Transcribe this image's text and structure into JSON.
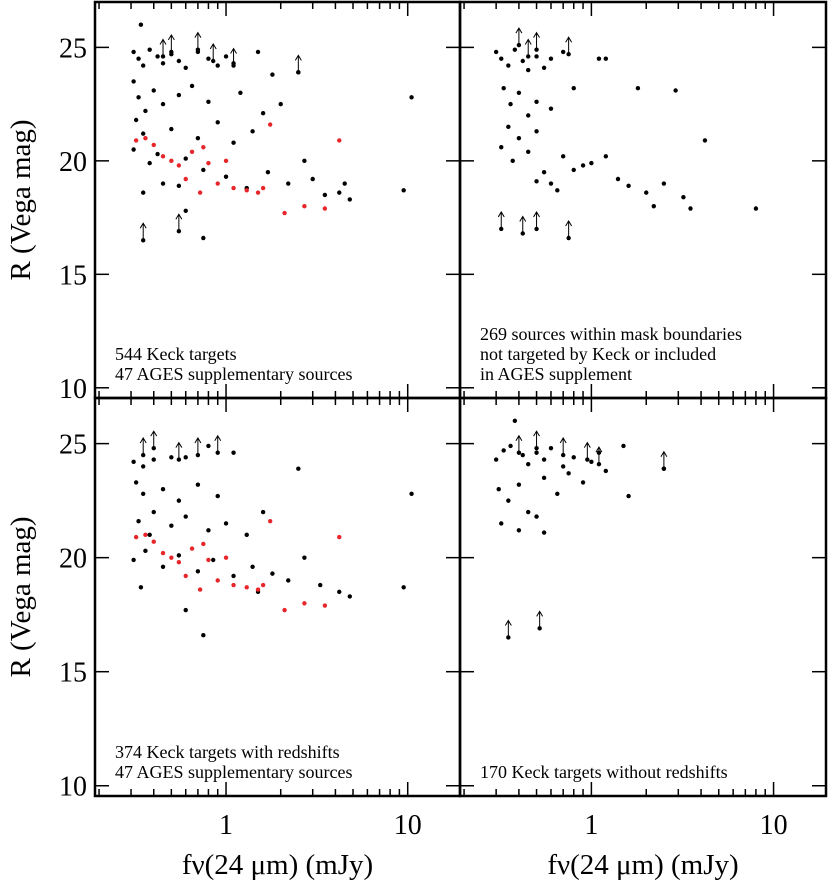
{
  "chart_data": [
    {
      "type": "scatter",
      "log_x": true,
      "xlim": [
        0.19,
        19.4
      ],
      "ylim": [
        9.55,
        27.0
      ],
      "xticks": [
        1,
        10
      ],
      "xminor_ticks": [
        0.2,
        0.3,
        0.4,
        0.5,
        0.6,
        0.7,
        0.8,
        0.9,
        2,
        3,
        4,
        5,
        6,
        7,
        8,
        9
      ],
      "yticks": [
        10,
        15,
        20,
        25
      ],
      "show_xtick_labels": false,
      "show_ytick_labels": true,
      "ylabel": "R (Vega mag)",
      "annotations": [
        {
          "text": "544 Keck targets",
          "color": "#000000"
        },
        {
          "text": "47 AGES supplementary sources",
          "color": "#e8262a"
        }
      ],
      "series": [
        {
          "color": "#000000",
          "marker": "dot",
          "x": [
            0.31,
            0.33,
            0.35,
            0.38,
            0.42,
            0.45,
            0.5,
            0.55,
            0.6,
            0.7,
            0.8,
            0.9,
            1.0,
            1.1,
            1.5,
            1.8,
            2.5,
            0.34,
            0.31,
            0.33,
            0.36,
            0.4,
            0.32,
            0.35,
            0.45,
            0.55,
            0.65,
            0.8,
            1.2,
            1.6,
            0.5,
            0.7,
            0.9,
            1.1,
            1.4,
            2.0,
            0.31,
            0.38,
            0.42,
            0.6,
            0.75,
            1.0,
            1.3,
            1.7,
            2.2,
            2.7,
            3.0,
            3.5,
            4.2,
            4.8,
            4.5,
            0.35,
            0.6,
            0.75,
            9.5,
            10.5,
            0.45,
            0.55
          ],
          "values": [
            24.8,
            24.5,
            24.2,
            24.9,
            24.6,
            24.3,
            24.7,
            24.4,
            24.1,
            24.8,
            24.5,
            24.2,
            24.6,
            24.3,
            24.8,
            23.8,
            23.9,
            26.0,
            23.5,
            22.8,
            22.2,
            23.1,
            21.8,
            21.2,
            22.5,
            22.9,
            23.3,
            22.6,
            23.0,
            22.1,
            21.4,
            21.0,
            21.7,
            20.8,
            21.3,
            22.5,
            20.5,
            19.9,
            20.3,
            20.1,
            19.6,
            19.3,
            18.8,
            19.5,
            19.0,
            20.0,
            19.2,
            18.5,
            18.6,
            18.3,
            19.0,
            18.6,
            17.8,
            16.6,
            18.7,
            22.8,
            19.0,
            18.9
          ]
        },
        {
          "color": "#e8262a",
          "marker": "dot",
          "x": [
            0.32,
            0.36,
            0.4,
            0.45,
            0.5,
            0.55,
            0.6,
            0.65,
            0.75,
            0.8,
            0.9,
            1.1,
            1.3,
            1.5,
            1.75,
            1.6,
            2.1,
            2.7,
            3.5,
            4.2,
            0.72,
            1.0
          ],
          "values": [
            20.9,
            21.0,
            20.7,
            20.2,
            20.0,
            19.8,
            19.2,
            20.4,
            20.6,
            19.9,
            19.0,
            18.8,
            18.7,
            18.6,
            21.6,
            18.8,
            17.7,
            18.0,
            17.9,
            20.9,
            18.6,
            20.0
          ]
        },
        {
          "color": "#000000",
          "marker": "upper-limit",
          "x": [
            0.35,
            0.55,
            0.5,
            0.7,
            0.85,
            1.1,
            2.5,
            0.45
          ],
          "values": [
            16.5,
            16.9,
            24.8,
            24.9,
            24.4,
            24.2,
            23.9,
            24.6
          ]
        }
      ]
    },
    {
      "type": "scatter",
      "log_x": true,
      "xlim": [
        0.19,
        19.4
      ],
      "ylim": [
        9.55,
        27.0
      ],
      "xticks": [
        1,
        10
      ],
      "xminor_ticks": [
        0.2,
        0.3,
        0.4,
        0.5,
        0.6,
        0.7,
        0.8,
        0.9,
        2,
        3,
        4,
        5,
        6,
        7,
        8,
        9
      ],
      "yticks": [
        10,
        15,
        20,
        25
      ],
      "show_xtick_labels": false,
      "show_ytick_labels": false,
      "annotations": [
        {
          "text": "269 sources within mask boundaries",
          "color": "#000000"
        },
        {
          "text": "not targeted by Keck or included",
          "color": "#000000"
        },
        {
          "text": "in AGES supplement",
          "color": "#000000"
        }
      ],
      "series": [
        {
          "color": "#000000",
          "marker": "dot",
          "x": [
            0.3,
            0.32,
            0.35,
            0.38,
            0.42,
            0.45,
            0.5,
            0.55,
            0.6,
            0.7,
            1.1,
            0.33,
            0.36,
            0.4,
            0.45,
            0.5,
            0.35,
            0.4,
            0.5,
            0.6,
            0.8,
            0.32,
            0.37,
            0.45,
            0.55,
            0.6,
            0.7,
            0.8,
            0.9,
            1.0,
            1.2,
            1.4,
            1.6,
            1.8,
            2.0,
            2.5,
            2.9,
            3.2,
            3.5,
            4.2,
            8.0,
            1.2,
            2.2,
            0.5,
            0.65
          ],
          "values": [
            24.8,
            24.5,
            24.2,
            24.9,
            24.4,
            24.0,
            24.6,
            24.1,
            24.5,
            24.8,
            24.5,
            23.2,
            22.5,
            23.0,
            22.0,
            22.6,
            21.5,
            21.0,
            21.3,
            22.3,
            23.2,
            20.6,
            20.0,
            20.4,
            19.5,
            19.0,
            20.2,
            19.6,
            19.8,
            19.9,
            20.2,
            19.2,
            18.9,
            23.2,
            18.6,
            19.0,
            23.1,
            18.4,
            17.9,
            20.9,
            17.9,
            24.5,
            18.0,
            19.1,
            18.7
          ]
        },
        {
          "color": "#000000",
          "marker": "upper-limit",
          "x": [
            0.32,
            0.42,
            0.5,
            0.75,
            0.4,
            0.5,
            0.75,
            0.45
          ],
          "values": [
            17.0,
            16.8,
            17.0,
            16.6,
            25.1,
            24.9,
            24.7,
            24.6
          ]
        }
      ]
    },
    {
      "type": "scatter",
      "log_x": true,
      "xlim": [
        0.19,
        19.4
      ],
      "ylim": [
        9.55,
        27.0
      ],
      "xticks": [
        1,
        10
      ],
      "xminor_ticks": [
        0.2,
        0.3,
        0.4,
        0.5,
        0.6,
        0.7,
        0.8,
        0.9,
        2,
        3,
        4,
        5,
        6,
        7,
        8,
        9
      ],
      "yticks": [
        10,
        15,
        20,
        25
      ],
      "show_xtick_labels": true,
      "show_ytick_labels": true,
      "ylabel": "R (Vega mag)",
      "xlabel": "fν(24 μm) (mJy)",
      "annotations": [
        {
          "text": "374 Keck targets with redshifts",
          "color": "#000000"
        },
        {
          "text": "47 AGES supplementary sources",
          "color": "#e8262a"
        }
      ],
      "series": [
        {
          "color": "#000000",
          "marker": "dot",
          "x": [
            0.31,
            0.35,
            0.4,
            0.5,
            0.6,
            0.8,
            1.1,
            2.5,
            0.32,
            0.35,
            0.4,
            0.45,
            0.55,
            0.7,
            0.9,
            0.33,
            0.38,
            0.5,
            0.6,
            0.8,
            1.0,
            1.3,
            1.6,
            0.31,
            0.36,
            0.45,
            0.55,
            0.7,
            0.85,
            1.1,
            1.4,
            1.8,
            2.2,
            2.7,
            3.3,
            4.2,
            4.8,
            0.34,
            0.6,
            0.75,
            9.5,
            10.5,
            1.5
          ],
          "values": [
            24.2,
            24.0,
            24.3,
            24.4,
            24.4,
            24.9,
            24.6,
            23.9,
            23.3,
            22.8,
            22.0,
            23.0,
            22.5,
            23.2,
            22.7,
            21.6,
            21.0,
            21.4,
            21.8,
            21.2,
            21.5,
            21.0,
            22.0,
            19.9,
            20.3,
            19.6,
            20.1,
            19.4,
            19.9,
            19.2,
            19.6,
            19.3,
            19.0,
            20.0,
            18.8,
            18.5,
            18.3,
            18.7,
            17.7,
            16.6,
            18.7,
            22.8,
            18.5
          ]
        },
        {
          "color": "#e8262a",
          "marker": "dot",
          "x": [
            0.32,
            0.36,
            0.4,
            0.45,
            0.5,
            0.55,
            0.6,
            0.65,
            0.75,
            0.8,
            0.9,
            1.1,
            1.3,
            1.5,
            1.75,
            1.6,
            2.1,
            2.7,
            3.5,
            4.2,
            0.72,
            1.0
          ],
          "values": [
            20.9,
            21.0,
            20.7,
            20.2,
            20.0,
            19.8,
            19.2,
            20.4,
            20.6,
            19.9,
            19.0,
            18.8,
            18.7,
            18.6,
            21.6,
            18.8,
            17.7,
            18.0,
            17.9,
            20.9,
            18.6,
            20.0
          ]
        },
        {
          "color": "#000000",
          "marker": "upper-limit",
          "x": [
            0.35,
            0.4,
            0.55,
            0.7,
            0.9
          ],
          "values": [
            24.5,
            24.8,
            24.3,
            24.5,
            24.6
          ]
        }
      ]
    },
    {
      "type": "scatter",
      "log_x": true,
      "xlim": [
        0.19,
        19.4
      ],
      "ylim": [
        9.55,
        27.0
      ],
      "xticks": [
        1,
        10
      ],
      "xminor_ticks": [
        0.2,
        0.3,
        0.4,
        0.5,
        0.6,
        0.7,
        0.8,
        0.9,
        2,
        3,
        4,
        5,
        6,
        7,
        8,
        9
      ],
      "yticks": [
        10,
        15,
        20,
        25
      ],
      "show_xtick_labels": true,
      "show_ytick_labels": false,
      "xlabel": "fν(24 μm) (mJy)",
      "annotations": [
        {
          "text": "170 Keck targets without redshifts",
          "color": "#000000"
        }
      ],
      "series": [
        {
          "color": "#000000",
          "marker": "dot",
          "x": [
            0.3,
            0.33,
            0.36,
            0.38,
            0.42,
            0.45,
            0.5,
            0.55,
            0.6,
            0.7,
            0.8,
            1.0,
            1.5,
            1.1,
            2.5,
            0.31,
            0.35,
            0.4,
            0.45,
            0.55,
            0.65,
            0.9,
            1.6,
            0.32,
            0.4,
            0.5,
            0.55,
            0.75,
            1.2
          ],
          "values": [
            24.3,
            24.7,
            24.9,
            26.0,
            24.5,
            24.1,
            24.6,
            24.3,
            24.8,
            24.0,
            24.4,
            24.2,
            24.9,
            24.6,
            23.9,
            23.0,
            22.5,
            23.2,
            22.0,
            23.5,
            22.8,
            23.3,
            22.7,
            21.5,
            21.2,
            21.8,
            21.1,
            23.7,
            23.8
          ]
        },
        {
          "color": "#000000",
          "marker": "upper-limit",
          "x": [
            0.35,
            0.52,
            0.5,
            0.7,
            0.4,
            0.95,
            1.1,
            2.5
          ],
          "values": [
            16.5,
            16.9,
            24.8,
            24.5,
            24.6,
            24.3,
            24.1,
            23.9
          ]
        }
      ]
    }
  ]
}
